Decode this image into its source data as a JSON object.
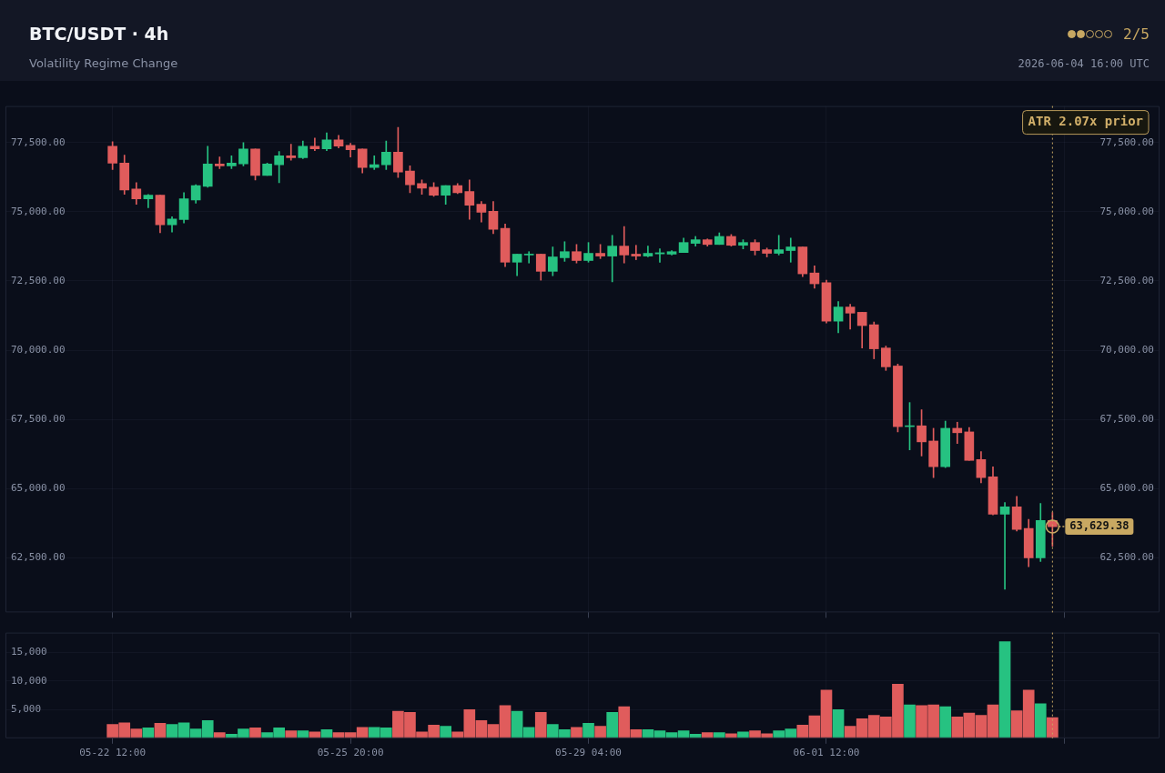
{
  "chart_data": [
    {
      "type": "candlestick",
      "title": "BTC/USDT · 4h",
      "subtitle": "Volatility Regime Change",
      "x": [
        "2026-05-22T12:00",
        "2026-05-22T16:00",
        "2026-05-22T20:00",
        "2026-05-23T00:00",
        "2026-05-23T04:00",
        "2026-05-23T08:00",
        "2026-05-23T12:00",
        "2026-05-23T16:00",
        "2026-05-23T20:00",
        "2026-05-24T00:00",
        "2026-05-24T04:00",
        "2026-05-24T08:00",
        "2026-05-24T12:00",
        "2026-05-24T16:00",
        "2026-05-24T20:00",
        "2026-05-25T00:00",
        "2026-05-25T04:00",
        "2026-05-25T08:00",
        "2026-05-25T12:00",
        "2026-05-25T16:00",
        "2026-05-25T20:00",
        "2026-05-26T00:00",
        "2026-05-26T04:00",
        "2026-05-26T08:00",
        "2026-05-26T12:00",
        "2026-05-26T16:00",
        "2026-05-26T20:00",
        "2026-05-27T00:00",
        "2026-05-27T04:00",
        "2026-05-27T08:00",
        "2026-05-27T12:00",
        "2026-05-27T16:00",
        "2026-05-27T20:00",
        "2026-05-28T00:00",
        "2026-05-28T04:00",
        "2026-05-28T08:00",
        "2026-05-28T12:00",
        "2026-05-28T16:00",
        "2026-05-28T20:00",
        "2026-05-29T00:00",
        "2026-05-29T04:00",
        "2026-05-29T08:00",
        "2026-05-29T12:00",
        "2026-05-29T16:00",
        "2026-05-29T20:00",
        "2026-05-30T00:00",
        "2026-05-30T04:00",
        "2026-05-30T08:00",
        "2026-05-30T12:00",
        "2026-05-30T16:00",
        "2026-05-30T20:00",
        "2026-05-31T00:00",
        "2026-05-31T04:00",
        "2026-05-31T08:00",
        "2026-05-31T12:00",
        "2026-05-31T16:00",
        "2026-05-31T20:00",
        "2026-06-01T00:00",
        "2026-06-01T04:00",
        "2026-06-01T08:00",
        "2026-06-01T12:00",
        "2026-06-01T16:00",
        "2026-06-01T20:00",
        "2026-06-02T00:00",
        "2026-06-02T04:00",
        "2026-06-02T08:00",
        "2026-06-02T12:00",
        "2026-06-02T16:00",
        "2026-06-02T20:00",
        "2026-06-03T00:00",
        "2026-06-03T04:00",
        "2026-06-03T08:00",
        "2026-06-03T12:00",
        "2026-06-03T16:00",
        "2026-06-03T20:00",
        "2026-06-04T00:00",
        "2026-06-04T04:00",
        "2026-06-04T08:00",
        "2026-06-04T12:00",
        "2026-06-04T16:00"
      ],
      "ohlc": [
        [
          77370,
          77530,
          76530,
          76760
        ],
        [
          76760,
          77050,
          75630,
          75790
        ],
        [
          75820,
          76050,
          75270,
          75470
        ],
        [
          75470,
          75630,
          75150,
          75600
        ],
        [
          75600,
          75600,
          74240,
          74530
        ],
        [
          74530,
          74820,
          74270,
          74740
        ],
        [
          74720,
          75690,
          74600,
          75470
        ],
        [
          75430,
          75980,
          75310,
          75950
        ],
        [
          75920,
          77370,
          75890,
          76730
        ],
        [
          76730,
          76980,
          76560,
          76660
        ],
        [
          76660,
          77020,
          76560,
          76760
        ],
        [
          76730,
          77500,
          76660,
          77270
        ],
        [
          77270,
          77270,
          76150,
          76310
        ],
        [
          76310,
          76760,
          76310,
          76730
        ],
        [
          76700,
          77180,
          76050,
          77020
        ],
        [
          77020,
          77440,
          76860,
          76950
        ],
        [
          76950,
          77560,
          76920,
          77370
        ],
        [
          77370,
          77660,
          77210,
          77270
        ],
        [
          77270,
          77850,
          77210,
          77600
        ],
        [
          77600,
          77760,
          77310,
          77370
        ],
        [
          77400,
          77470,
          76980,
          77240
        ],
        [
          77270,
          77270,
          76400,
          76600
        ],
        [
          76600,
          77020,
          76530,
          76700
        ],
        [
          76700,
          77560,
          76530,
          77150
        ],
        [
          77150,
          78050,
          76240,
          76440
        ],
        [
          76470,
          76660,
          75690,
          75980
        ],
        [
          76020,
          76150,
          75630,
          75850
        ],
        [
          75890,
          76050,
          75560,
          75600
        ],
        [
          75600,
          75950,
          75270,
          75950
        ],
        [
          75950,
          76020,
          75660,
          75690
        ],
        [
          75730,
          76150,
          74730,
          75240
        ],
        [
          75270,
          75370,
          74630,
          74980
        ],
        [
          75020,
          75370,
          74210,
          74370
        ],
        [
          74400,
          74560,
          73020,
          73180
        ],
        [
          73180,
          73470,
          72690,
          73470
        ],
        [
          73440,
          73560,
          73150,
          73470
        ],
        [
          73470,
          73470,
          72530,
          72850
        ],
        [
          72850,
          73730,
          72690,
          73370
        ],
        [
          73340,
          73920,
          73210,
          73560
        ],
        [
          73560,
          73820,
          73150,
          73240
        ],
        [
          73240,
          73890,
          73180,
          73500
        ],
        [
          73500,
          73820,
          73310,
          73400
        ],
        [
          73400,
          74150,
          72470,
          73760
        ],
        [
          73760,
          74470,
          73150,
          73440
        ],
        [
          73470,
          73790,
          73270,
          73400
        ],
        [
          73400,
          73760,
          73370,
          73500
        ],
        [
          73480,
          73660,
          73180,
          73520
        ],
        [
          73470,
          73600,
          73440,
          73560
        ],
        [
          73530,
          74050,
          73530,
          73890
        ],
        [
          73860,
          74110,
          73760,
          73990
        ],
        [
          73990,
          74020,
          73760,
          73820
        ],
        [
          73820,
          74240,
          73820,
          74110
        ],
        [
          74110,
          74180,
          73760,
          73790
        ],
        [
          73790,
          73990,
          73660,
          73890
        ],
        [
          73890,
          73990,
          73440,
          73600
        ],
        [
          73630,
          73690,
          73370,
          73500
        ],
        [
          73500,
          74150,
          73440,
          73630
        ],
        [
          73600,
          74050,
          73180,
          73730
        ],
        [
          73730,
          73730,
          72660,
          72760
        ],
        [
          72790,
          73050,
          72240,
          72400
        ],
        [
          72440,
          72530,
          70980,
          71050
        ],
        [
          71050,
          71760,
          70630,
          71560
        ],
        [
          71560,
          71660,
          70760,
          71340
        ],
        [
          71370,
          71370,
          70080,
          70890
        ],
        [
          70920,
          71020,
          69690,
          70050
        ],
        [
          70080,
          70150,
          69270,
          69400
        ],
        [
          69430,
          69500,
          67050,
          67240
        ],
        [
          67240,
          68110,
          66400,
          67270
        ],
        [
          67270,
          67850,
          66180,
          66690
        ],
        [
          66720,
          67180,
          65400,
          65790
        ],
        [
          65790,
          67440,
          65760,
          67180
        ],
        [
          67180,
          67400,
          66630,
          67020
        ],
        [
          67050,
          67210,
          66020,
          66020
        ],
        [
          66050,
          66340,
          65210,
          65400
        ],
        [
          65430,
          65790,
          64050,
          64080
        ],
        [
          64080,
          64500,
          61370,
          64340
        ],
        [
          64340,
          64720,
          63470,
          63530
        ],
        [
          63560,
          63890,
          62180,
          62500
        ],
        [
          62500,
          64470,
          62370,
          63850
        ],
        [
          63850,
          64140,
          62920,
          63629.38
        ]
      ],
      "colors": [
        "#e05c5c",
        "#e05c5c",
        "#e05c5c",
        "#26c281",
        "#e05c5c",
        "#26c281",
        "#26c281",
        "#26c281",
        "#26c281",
        "#e05c5c",
        "#26c281",
        "#26c281",
        "#e05c5c",
        "#26c281",
        "#26c281",
        "#e05c5c",
        "#26c281",
        "#e05c5c",
        "#26c281",
        "#e05c5c",
        "#e05c5c",
        "#e05c5c",
        "#26c281",
        "#26c281",
        "#e05c5c",
        "#e05c5c",
        "#e05c5c",
        "#e05c5c",
        "#26c281",
        "#e05c5c",
        "#e05c5c",
        "#e05c5c",
        "#e05c5c",
        "#e05c5c",
        "#26c281",
        "#26c281",
        "#e05c5c",
        "#26c281",
        "#26c281",
        "#e05c5c",
        "#26c281",
        "#e05c5c",
        "#26c281",
        "#e05c5c",
        "#e05c5c",
        "#26c281",
        "#26c281",
        "#26c281",
        "#26c281",
        "#26c281",
        "#e05c5c",
        "#26c281",
        "#e05c5c",
        "#26c281",
        "#e05c5c",
        "#e05c5c",
        "#26c281",
        "#26c281",
        "#e05c5c",
        "#e05c5c",
        "#e05c5c",
        "#26c281",
        "#e05c5c",
        "#e05c5c",
        "#e05c5c",
        "#e05c5c",
        "#e05c5c",
        "#26c281",
        "#e05c5c",
        "#e05c5c",
        "#26c281",
        "#e05c5c",
        "#e05c5c",
        "#e05c5c",
        "#e05c5c",
        "#26c281",
        "#e05c5c",
        "#e05c5c",
        "#26c281",
        "#e05c5c"
      ],
      "xlim": [
        "2026-05-21T00:00",
        "2026-06-06T04:00"
      ],
      "xticks": [
        {
          "value": "2026-05-22T12:00",
          "label": null
        },
        {
          "value": "2026-05-25T20:00",
          "label": null
        },
        {
          "value": "2026-05-29T04:00",
          "label": null
        },
        {
          "value": "2026-06-01T12:00",
          "label": null
        },
        {
          "value": "2026-06-04T20:00",
          "label": null
        }
      ],
      "ylim": [
        60530,
        78820
      ],
      "yticks": [
        {
          "value": 62500,
          "label": "62,500.00"
        },
        {
          "value": 65000,
          "label": "65,000.00"
        },
        {
          "value": 67500,
          "label": "67,500.00"
        },
        {
          "value": 70000,
          "label": "70,000.00"
        },
        {
          "value": 72500,
          "label": "72,500.00"
        },
        {
          "value": 75000,
          "label": "75,000.00"
        },
        {
          "value": 77500,
          "label": "77,500.00"
        }
      ],
      "y2lim": [
        60530,
        78820
      ],
      "y2ticks": [
        {
          "value": 62500,
          "label": "62,500.00"
        },
        {
          "value": 65000,
          "label": "65,000.00"
        },
        {
          "value": 67500,
          "label": "67,500.00"
        },
        {
          "value": 70000,
          "label": "70,000.00"
        },
        {
          "value": 72500,
          "label": "72,500.00"
        },
        {
          "value": 75000,
          "label": "75,000.00"
        },
        {
          "value": 77500,
          "label": "77,500.00"
        }
      ],
      "tick_labels": "y",
      "grid": true,
      "legend": false,
      "ref_lines": [
        {
          "axis": "x",
          "value": "2026-06-04T16:00",
          "color": "#c8a862",
          "line_style": "dotted"
        }
      ],
      "annotations": [
        "ATR 2.07x prior",
        {
          "text": "63,629.38",
          "x": "2026-06-04T16:00",
          "y": 63629.38
        },
        "2/5",
        "2026-06-04 16:00 UTC"
      ]
    },
    {
      "type": "bar",
      "x": [
        "2026-05-22T12:00",
        "2026-05-22T16:00",
        "2026-05-22T20:00",
        "2026-05-23T00:00",
        "2026-05-23T04:00",
        "2026-05-23T08:00",
        "2026-05-23T12:00",
        "2026-05-23T16:00",
        "2026-05-23T20:00",
        "2026-05-24T00:00",
        "2026-05-24T04:00",
        "2026-05-24T08:00",
        "2026-05-24T12:00",
        "2026-05-24T16:00",
        "2026-05-24T20:00",
        "2026-05-25T00:00",
        "2026-05-25T04:00",
        "2026-05-25T08:00",
        "2026-05-25T12:00",
        "2026-05-25T16:00",
        "2026-05-25T20:00",
        "2026-05-26T00:00",
        "2026-05-26T04:00",
        "2026-05-26T08:00",
        "2026-05-26T12:00",
        "2026-05-26T16:00",
        "2026-05-26T20:00",
        "2026-05-27T00:00",
        "2026-05-27T04:00",
        "2026-05-27T08:00",
        "2026-05-27T12:00",
        "2026-05-27T16:00",
        "2026-05-27T20:00",
        "2026-05-28T00:00",
        "2026-05-28T04:00",
        "2026-05-28T08:00",
        "2026-05-28T12:00",
        "2026-05-28T16:00",
        "2026-05-28T20:00",
        "2026-05-29T00:00",
        "2026-05-29T04:00",
        "2026-05-29T08:00",
        "2026-05-29T12:00",
        "2026-05-29T16:00",
        "2026-05-29T20:00",
        "2026-05-30T00:00",
        "2026-05-30T04:00",
        "2026-05-30T08:00",
        "2026-05-30T12:00",
        "2026-05-30T16:00",
        "2026-05-30T20:00",
        "2026-05-31T00:00",
        "2026-05-31T04:00",
        "2026-05-31T08:00",
        "2026-05-31T12:00",
        "2026-05-31T16:00",
        "2026-05-31T20:00",
        "2026-06-01T00:00",
        "2026-06-01T04:00",
        "2026-06-01T08:00",
        "2026-06-01T12:00",
        "2026-06-01T16:00",
        "2026-06-01T20:00",
        "2026-06-02T00:00",
        "2026-06-02T04:00",
        "2026-06-02T08:00",
        "2026-06-02T12:00",
        "2026-06-02T16:00",
        "2026-06-02T20:00",
        "2026-06-03T00:00",
        "2026-06-03T04:00",
        "2026-06-03T08:00",
        "2026-06-03T12:00",
        "2026-06-03T16:00",
        "2026-06-03T20:00",
        "2026-06-04T00:00",
        "2026-06-04T04:00",
        "2026-06-04T08:00",
        "2026-06-04T12:00",
        "2026-06-04T16:00"
      ],
      "values": [
        2400,
        2700,
        1600,
        1800,
        2600,
        2400,
        2700,
        1600,
        3100,
        1000,
        700,
        1600,
        1800,
        1000,
        1800,
        1300,
        1300,
        1100,
        1500,
        1000,
        1000,
        1900,
        1900,
        1800,
        4700,
        4500,
        1100,
        2300,
        2100,
        1100,
        5000,
        3100,
        2400,
        5700,
        4700,
        1900,
        4500,
        2400,
        1500,
        1900,
        2600,
        2100,
        4500,
        5500,
        1500,
        1500,
        1300,
        1000,
        1300,
        700,
        1000,
        1000,
        800,
        1100,
        1300,
        800,
        1300,
        1600,
        2300,
        3900,
        8400,
        5000,
        2100,
        3400,
        4000,
        3700,
        9400,
        5800,
        5700,
        5800,
        5500,
        3700,
        4400,
        4000,
        5800,
        16800,
        4800,
        8400,
        6000,
        3600
      ],
      "colors": [
        "#e05c5c",
        "#e05c5c",
        "#e05c5c",
        "#26c281",
        "#e05c5c",
        "#26c281",
        "#26c281",
        "#26c281",
        "#26c281",
        "#e05c5c",
        "#26c281",
        "#26c281",
        "#e05c5c",
        "#26c281",
        "#26c281",
        "#e05c5c",
        "#26c281",
        "#e05c5c",
        "#26c281",
        "#e05c5c",
        "#e05c5c",
        "#e05c5c",
        "#26c281",
        "#26c281",
        "#e05c5c",
        "#e05c5c",
        "#e05c5c",
        "#e05c5c",
        "#26c281",
        "#e05c5c",
        "#e05c5c",
        "#e05c5c",
        "#e05c5c",
        "#e05c5c",
        "#26c281",
        "#26c281",
        "#e05c5c",
        "#26c281",
        "#26c281",
        "#e05c5c",
        "#26c281",
        "#e05c5c",
        "#26c281",
        "#e05c5c",
        "#e05c5c",
        "#26c281",
        "#26c281",
        "#26c281",
        "#26c281",
        "#26c281",
        "#e05c5c",
        "#26c281",
        "#e05c5c",
        "#26c281",
        "#e05c5c",
        "#e05c5c",
        "#26c281",
        "#26c281",
        "#e05c5c",
        "#e05c5c",
        "#e05c5c",
        "#26c281",
        "#e05c5c",
        "#e05c5c",
        "#e05c5c",
        "#e05c5c",
        "#e05c5c",
        "#26c281",
        "#e05c5c",
        "#e05c5c",
        "#26c281",
        "#e05c5c",
        "#e05c5c",
        "#e05c5c",
        "#e05c5c",
        "#26c281",
        "#e05c5c",
        "#e05c5c",
        "#26c281",
        "#e05c5c"
      ],
      "xlim": [
        "2026-05-21T00:00",
        "2026-06-06T04:00"
      ],
      "xticks": [
        {
          "value": "2026-05-22T12:00",
          "label": "05-22 12:00"
        },
        {
          "value": "2026-05-25T20:00",
          "label": "05-25 20:00"
        },
        {
          "value": "2026-05-29T04:00",
          "label": "05-29 04:00"
        },
        {
          "value": "2026-06-01T12:00",
          "label": "06-01 12:00"
        },
        {
          "value": "2026-06-04T20:00",
          "label": null
        }
      ],
      "ylim": [
        0,
        18400
      ],
      "yticks": [
        {
          "value": 5000,
          "label": "5,000"
        },
        {
          "value": 10000,
          "label": "10,000"
        },
        {
          "value": 15000,
          "label": "15,000"
        }
      ],
      "grid": true,
      "legend": false,
      "ref_lines": [
        {
          "axis": "x",
          "value": "2026-06-04T16:00",
          "color": "#c8a862",
          "line_style": "dotted"
        }
      ]
    }
  ]
}
